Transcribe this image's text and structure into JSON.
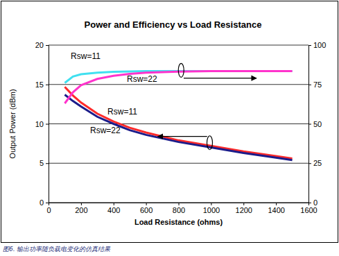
{
  "chart_data": {
    "type": "line",
    "title": "Power and Efficiency vs Load Resistance",
    "caption": "图6. 输出功率随负载电变化的仿真结果",
    "x_label": "Load Resistance (ohms)",
    "y_label": "Output Power (dBm)",
    "x": [
      100,
      150,
      200,
      300,
      400,
      500,
      600,
      800,
      1000,
      1200,
      1400,
      1500
    ],
    "xlim": [
      0,
      1600
    ],
    "xticks": [
      0,
      200,
      400,
      600,
      800,
      1000,
      1200,
      1400,
      1600
    ],
    "ylim": [
      0,
      20
    ],
    "yticks": [
      0,
      5,
      10,
      15,
      20
    ],
    "y2lim": [
      0,
      100
    ],
    "y2ticks": [
      0,
      25,
      50,
      75,
      100
    ],
    "grid": true,
    "series": [
      {
        "color": "#ff2a2a",
        "values": [
          14.7,
          13.6,
          12.7,
          11.3,
          10.3,
          9.5,
          8.9,
          7.9,
          7.2,
          6.5,
          5.9,
          5.6
        ]
      },
      {
        "color": "#1c1c8a",
        "values": [
          13.7,
          12.9,
          12.2,
          10.9,
          10.0,
          9.2,
          8.6,
          7.7,
          7.0,
          6.3,
          5.7,
          5.4
        ]
      },
      {
        "color": "#40e0f0",
        "axis": "y2",
        "values": [
          76,
          80,
          81.5,
          82.5,
          83,
          83.3,
          83.5,
          83.5,
          83.5,
          83.5,
          83.5,
          83.5
        ]
      },
      {
        "color": "#ff33cc",
        "axis": "y2",
        "values": [
          63,
          70,
          74.5,
          78.5,
          80.5,
          81.7,
          82.5,
          83.2,
          83.5,
          83.5,
          83.5,
          83.5
        ]
      }
    ],
    "annotations": [
      {
        "text": "Rsw=11",
        "x": 137,
        "y": 91,
        "axis": "y2"
      },
      {
        "text": "Rsw=22",
        "x": 482,
        "y": 76.6,
        "axis": "y2"
      },
      {
        "text": "Rsw=11",
        "x": 363,
        "y": 11.2
      },
      {
        "text": "Rsw=22",
        "x": 256,
        "y": 8.8
      }
    ]
  }
}
